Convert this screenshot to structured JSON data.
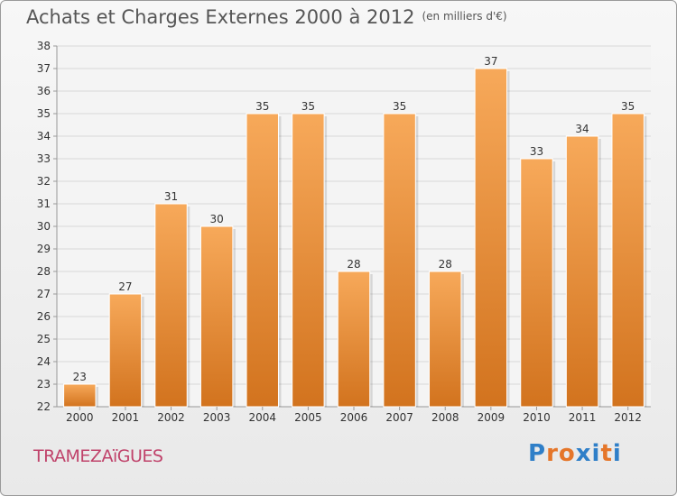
{
  "header": {
    "title": "Achats et Charges Externes 2000 à 2012",
    "unit": "(en milliers d'€)"
  },
  "footer": {
    "commune": "TRAMEZAïGUES",
    "brand": "Proxiti",
    "brand_colors": [
      "#2f7fc8",
      "#e5762a",
      "#e5762a",
      "#2f7fc8",
      "#2f7fc8",
      "#e5762a",
      "#2f7fc8"
    ]
  },
  "colors": {
    "bar_top": "#f7a95a",
    "bar_bottom": "#d2731e",
    "grid": "#d8d8d8",
    "axis_text": "#333333"
  },
  "chart_data": {
    "type": "bar",
    "title": "Achats et Charges Externes 2000 à 2012",
    "subtitle": "(en milliers d'€)",
    "categories": [
      "2000",
      "2001",
      "2002",
      "2003",
      "2004",
      "2005",
      "2006",
      "2007",
      "2008",
      "2009",
      "2010",
      "2011",
      "2012"
    ],
    "values": [
      23,
      27,
      31,
      30,
      35,
      35,
      28,
      35,
      28,
      37,
      33,
      34,
      35
    ],
    "ylim": [
      22,
      38
    ],
    "yticks": [
      22,
      23,
      24,
      25,
      26,
      27,
      28,
      29,
      30,
      31,
      32,
      33,
      34,
      35,
      36,
      37,
      38
    ],
    "grid": true,
    "data_labels": true
  }
}
